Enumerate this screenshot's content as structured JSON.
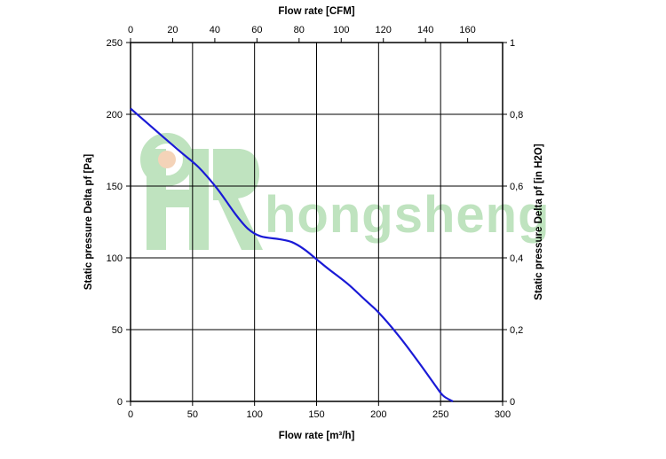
{
  "chart_data": {
    "type": "line",
    "title": "",
    "xlabel": "Flow rate [m³/h]",
    "x2label": "Flow rate [CFM]",
    "ylabel": "Static pressure Delta pf [Pa]",
    "y2label": "Static pressure Delta pf [in H2O]",
    "xlim": [
      0,
      300
    ],
    "ylim": [
      0,
      250
    ],
    "x2lim": [
      0,
      176.6
    ],
    "y2lim": [
      0,
      1
    ],
    "x_ticks": [
      0,
      50,
      100,
      150,
      200,
      250,
      300
    ],
    "x_tick_labels": [
      "0",
      "50",
      "100",
      "150",
      "200",
      "250",
      "300"
    ],
    "y_ticks": [
      0,
      50,
      100,
      150,
      200,
      250
    ],
    "y_tick_labels": [
      "0",
      "50",
      "100",
      "150",
      "200",
      "250"
    ],
    "x2_ticks": [
      0,
      20,
      40,
      60,
      80,
      100,
      120,
      140,
      160
    ],
    "x2_tick_labels": [
      "0",
      "20",
      "40",
      "60",
      "80",
      "100",
      "120",
      "140",
      "160"
    ],
    "y2_ticks": [
      0,
      0.2,
      0.4,
      0.6,
      0.8,
      1
    ],
    "y2_tick_labels": [
      "0",
      "0,2",
      "0,4",
      "0,6",
      "0,8",
      "1"
    ],
    "grid": true,
    "series": [
      {
        "name": "",
        "color": "#1a1ad6",
        "x": [
          0,
          20,
          40,
          55,
          70,
          85,
          95,
          105,
          120,
          130,
          140,
          150,
          160,
          175,
          190,
          200,
          215,
          230,
          245,
          252,
          260
        ],
        "y": [
          204,
          189,
          174,
          163,
          148,
          130,
          120,
          115,
          113,
          111,
          106,
          99,
          92,
          82,
          70,
          62,
          47,
          30,
          12,
          4,
          0
        ]
      }
    ]
  },
  "watermark": {
    "text": "hongsheng",
    "color": "#bfe3bf"
  }
}
